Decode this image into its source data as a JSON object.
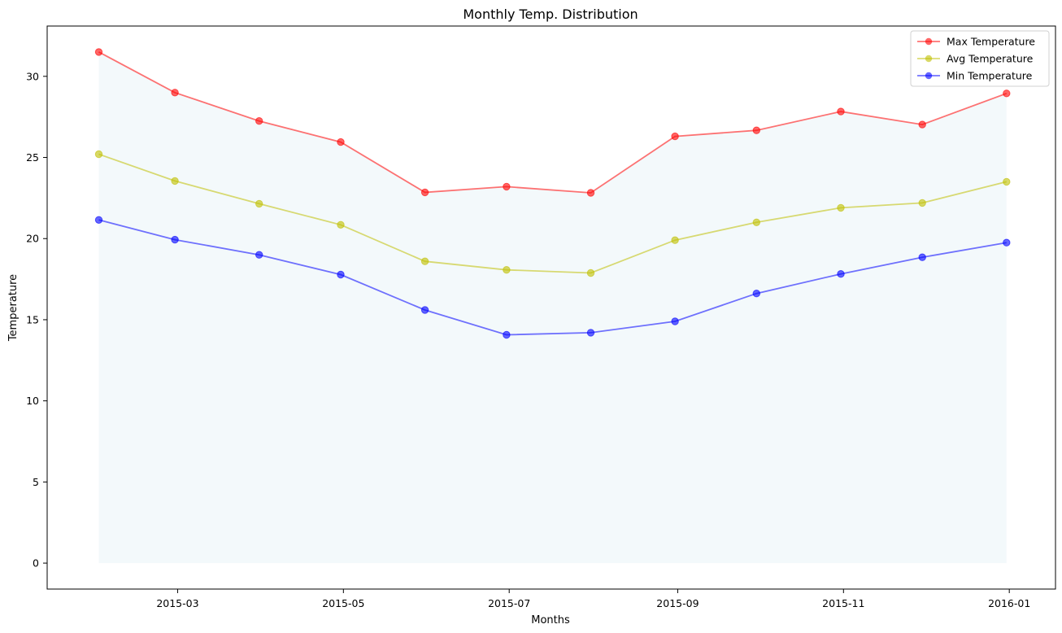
{
  "chart_data": {
    "type": "line",
    "title": "Monthly Temp. Distribution",
    "xlabel": "Months",
    "ylabel": "Temperature",
    "x": [
      "2015-01-31",
      "2015-02-28",
      "2015-03-31",
      "2015-04-30",
      "2015-05-31",
      "2015-06-30",
      "2015-07-31",
      "2015-08-31",
      "2015-09-30",
      "2015-10-31",
      "2015-11-30",
      "2015-12-31"
    ],
    "x_ticks": [
      "2015-03",
      "2015-05",
      "2015-07",
      "2015-09",
      "2015-11",
      "2016-01"
    ],
    "x_tick_dates": [
      "2015-03-01",
      "2015-05-01",
      "2015-07-01",
      "2015-09-01",
      "2015-11-01",
      "2016-01-01"
    ],
    "xlim": [
      "2015-01-12",
      "2016-01-18"
    ],
    "ylim": [
      -1.6,
      33.1
    ],
    "y_ticks": [
      0,
      5,
      10,
      15,
      20,
      25,
      30
    ],
    "grid": false,
    "legend_position": "top-right",
    "fill_between": {
      "lower": 0,
      "upper_series": "Max Temperature",
      "color": "#add8e6",
      "opacity": 0.15
    },
    "series": [
      {
        "name": "Max Temperature",
        "color": "#ff0000",
        "values": [
          31.5,
          29.0,
          27.25,
          25.95,
          22.85,
          23.2,
          22.82,
          26.3,
          26.67,
          27.83,
          27.03,
          28.95
        ]
      },
      {
        "name": "Avg Temperature",
        "color": "#bfbf00",
        "values": [
          25.2,
          23.55,
          22.15,
          20.85,
          18.6,
          18.07,
          17.88,
          19.9,
          21.0,
          21.9,
          22.2,
          23.5
        ]
      },
      {
        "name": "Min Temperature",
        "color": "#0000ff",
        "values": [
          21.15,
          19.93,
          19.0,
          17.78,
          15.6,
          14.07,
          14.2,
          14.9,
          16.62,
          17.82,
          18.85,
          19.75
        ]
      }
    ]
  }
}
